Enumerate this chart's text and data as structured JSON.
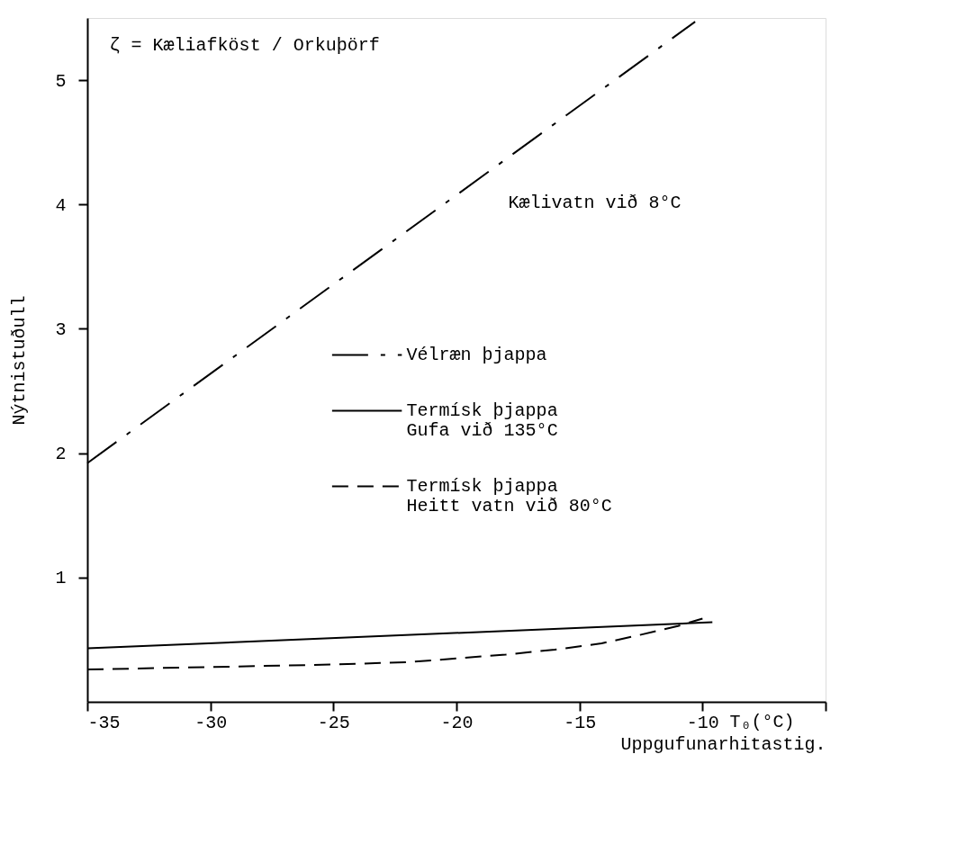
{
  "chart_data": {
    "type": "line",
    "xlabel": "Uppgufunarhitastig.",
    "ylabel": "Nýtnistuðull",
    "annotations": [
      "ζ = Kæliafköst / Orkuþörf",
      "Kælivatn við 8°C",
      "T₀(°C)"
    ],
    "xlim": [
      -35,
      -5
    ],
    "ylim": [
      0,
      5.5
    ],
    "xticks": [
      -35,
      -30,
      -25,
      -20,
      -15,
      -10,
      {
        "value": -5,
        "label": null
      }
    ],
    "yticks": [
      1,
      2,
      3,
      4,
      5
    ],
    "grid": false,
    "legend": "right",
    "marker": "none",
    "series": [
      {
        "name": "Vélræn þjappa",
        "color": "#000000",
        "line_style": "dashdot",
        "x": [
          -35,
          -10.3
        ],
        "values": [
          1.92,
          5.47
        ]
      },
      {
        "name": "Termísk þjappa\nGufa við 135°C",
        "color": "#000000",
        "line_style": "solid",
        "x": [
          -35,
          -9.6
        ],
        "values": [
          0.43,
          0.64
        ]
      },
      {
        "name": "Termísk þjappa\nHeitt vatn við 80°C",
        "color": "#000000",
        "line_style": "dashed",
        "x": [
          -35,
          -30,
          -25,
          -21.9,
          -18,
          -16,
          -14.1,
          -12.5,
          -11,
          -10
        ],
        "values": [
          0.26,
          0.28,
          0.3,
          0.32,
          0.38,
          0.42,
          0.47,
          0.54,
          0.61,
          0.67
        ]
      }
    ]
  }
}
